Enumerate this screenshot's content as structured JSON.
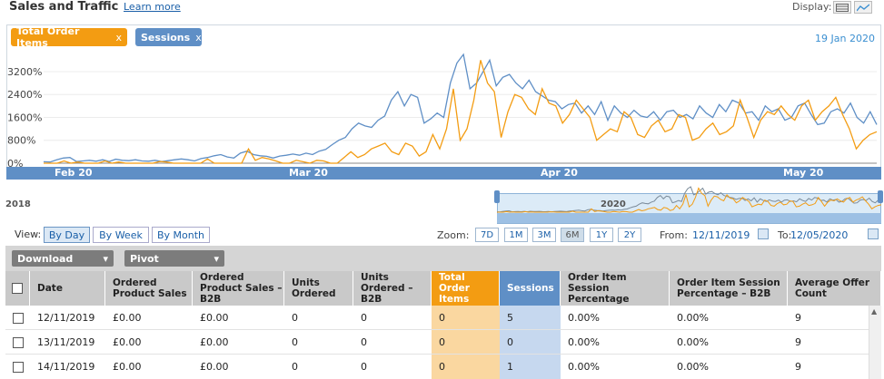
{
  "header": {
    "title": "Sales and Traffic",
    "learn_more": "Learn more",
    "display_label": "Display:"
  },
  "chart": {
    "pills": [
      {
        "label": "Total Order Items",
        "close": "x",
        "color": "#f39c12"
      },
      {
        "label": "Sessions",
        "close": "x",
        "color": "#5f8fc6"
      }
    ],
    "date_label": "19 Jan 2020",
    "y_ticks": [
      "3200%",
      "2400%",
      "1600%",
      "800%",
      "0%"
    ],
    "x_ticks": [
      "Feb 20",
      "Mar 20",
      "Apr 20",
      "May 20"
    ],
    "navigator": {
      "left_label": "2018",
      "mid_label": "2020"
    },
    "colors": {
      "orders": "#f39c12",
      "sessions": "#5f8fc6"
    }
  },
  "chart_data": {
    "type": "line",
    "xlabel": "",
    "ylabel": "",
    "ylim": [
      0,
      3800
    ],
    "x_ticks": [
      "Feb 20",
      "Mar 20",
      "Apr 20",
      "May 20"
    ],
    "series": [
      {
        "name": "Sessions",
        "values": [
          50,
          40,
          120,
          180,
          200,
          60,
          80,
          100,
          70,
          120,
          60,
          140,
          100,
          90,
          120,
          80,
          70,
          100,
          60,
          90,
          120,
          150,
          120,
          80,
          160,
          200,
          260,
          300,
          220,
          180,
          350,
          420,
          300,
          260,
          240,
          180,
          250,
          280,
          320,
          280,
          350,
          300,
          420,
          480,
          650,
          800,
          900,
          1200,
          1400,
          1300,
          1250,
          1500,
          1650,
          2200,
          2500,
          2000,
          2400,
          2300,
          1400,
          1550,
          1750,
          1600,
          2800,
          3500,
          3800,
          2600,
          2800,
          3200,
          3600,
          2700,
          3000,
          3100,
          2800,
          2600,
          2900,
          2500,
          2350,
          2200,
          2150,
          1900,
          2050,
          2100,
          1750,
          2000,
          1700,
          2150,
          1500,
          2000,
          1750,
          1600,
          1850,
          1650,
          1600,
          1800,
          1500,
          1800,
          1850,
          1600,
          1700,
          1550,
          2000,
          1750,
          1600,
          2050,
          1800,
          2200,
          2100,
          1750,
          1800,
          1500,
          2000,
          1800,
          1900,
          1500,
          1600,
          2000,
          2100,
          1700,
          1350,
          1400,
          1800,
          1900,
          1750,
          2100,
          1600,
          1400,
          1800,
          1350
        ]
      },
      {
        "name": "Total Order Items",
        "values": [
          0,
          0,
          0,
          80,
          0,
          40,
          0,
          0,
          0,
          80,
          0,
          40,
          0,
          0,
          0,
          0,
          0,
          60,
          40,
          0,
          0,
          0,
          0,
          0,
          150,
          0,
          0,
          0,
          0,
          0,
          500,
          100,
          200,
          150,
          80,
          0,
          0,
          100,
          50,
          0,
          100,
          80,
          0,
          0,
          200,
          400,
          200,
          300,
          500,
          600,
          700,
          400,
          300,
          700,
          600,
          250,
          400,
          1000,
          500,
          1200,
          2600,
          800,
          1200,
          2200,
          3600,
          2800,
          2500,
          900,
          1800,
          2400,
          2300,
          1900,
          1700,
          2600,
          2100,
          2000,
          1400,
          1700,
          2200,
          1900,
          1600,
          800,
          1000,
          1200,
          1100,
          1800,
          1600,
          1000,
          900,
          1300,
          1500,
          1100,
          1200,
          1700,
          1600,
          800,
          900,
          1200,
          1400,
          1000,
          1100,
          1300,
          2200,
          1600,
          900,
          1500,
          1800,
          1700,
          2000,
          1700,
          1500,
          2000,
          2200,
          1500,
          1800,
          2000,
          2300,
          1700,
          1200,
          500,
          800,
          1000,
          1100
        ]
      }
    ]
  },
  "controls": {
    "view_label": "View:",
    "view_buttons": [
      "By Day",
      "By Week",
      "By Month"
    ],
    "zoom_label": "Zoom:",
    "zoom_buttons": [
      "7D",
      "1M",
      "3M",
      "6M",
      "1Y",
      "2Y"
    ],
    "from_label": "From:",
    "from_value": "12/11/2019",
    "to_label": "To:",
    "to_value": "12/05/2020"
  },
  "table": {
    "toolbar": {
      "download": "Download",
      "pivot": "Pivot"
    },
    "headers": {
      "date": "Date",
      "ordered_product_sales": "Ordered Product Sales",
      "ordered_product_sales_b2b": "Ordered Product Sales – B2B",
      "units_ordered": "Units Ordered",
      "units_ordered_b2b": "Units Ordered – B2B",
      "total_order_items": "Total Order Items",
      "sessions": "Sessions",
      "order_item_session_pct": "Order Item Session Percentage",
      "order_item_session_pct_b2b": "Order Item Session Percentage – B2B",
      "avg_offer_count": "Average Offer Count"
    },
    "rows": [
      {
        "date": "12/11/2019",
        "sales": "£0.00",
        "sales_b2b": "£0.00",
        "units": "0",
        "units_b2b": "0",
        "items": "0",
        "sessions": "5",
        "pct": "0.00%",
        "pct_b2b": "0.00%",
        "offers": "9"
      },
      {
        "date": "13/11/2019",
        "sales": "£0.00",
        "sales_b2b": "£0.00",
        "units": "0",
        "units_b2b": "0",
        "items": "0",
        "sessions": "0",
        "pct": "0.00%",
        "pct_b2b": "0.00%",
        "offers": "9"
      },
      {
        "date": "14/11/2019",
        "sales": "£0.00",
        "sales_b2b": "£0.00",
        "units": "0",
        "units_b2b": "0",
        "items": "0",
        "sessions": "1",
        "pct": "0.00%",
        "pct_b2b": "0.00%",
        "offers": "9"
      }
    ]
  }
}
